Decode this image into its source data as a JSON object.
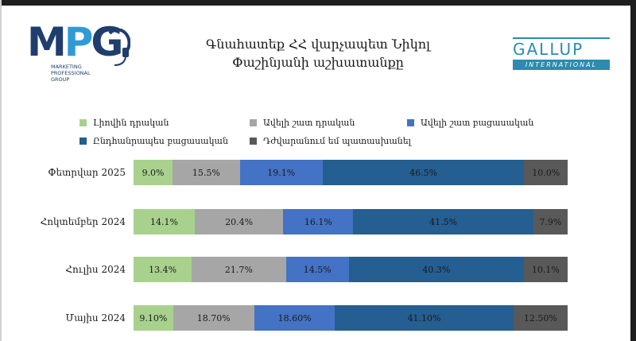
{
  "header": {
    "title_line1": "Գնահատեք ՀՀ վարչապետ Նիկոլ",
    "title_line2": "Փաշինյանի աշխատանքը",
    "mpg_logo": {
      "letters": "MPG",
      "sub_line1": "MARKETING",
      "sub_line2": "PROFESSIONAL",
      "sub_line3": "GROUP",
      "colors": {
        "dark": "#1f3e6e",
        "light": "#2e9bd6"
      }
    },
    "gallup_logo": {
      "word": "GALLUP",
      "sub": "INTERNATIONAL",
      "color": "#2a8cb0"
    }
  },
  "chart_data": {
    "type": "bar",
    "orientation": "horizontal-stacked-100",
    "title": "Գնահատեք ՀՀ վարչապետ Նիկոլ Փաշինյանի աշխատանքը",
    "categories": [
      "Փետրվար 2025",
      "Հոկտեմբեր 2024",
      "Հուլիս 2024",
      "Մայիս 2024"
    ],
    "series": [
      {
        "name": "Լիովին դրական",
        "color": "#a9d18e",
        "values": [
          9.0,
          14.1,
          13.4,
          9.1
        ],
        "labels": [
          "9.0%",
          "14.1%",
          "13.4%",
          "9.10%"
        ]
      },
      {
        "name": "Ավելի շատ դրական",
        "color": "#a6a6a6",
        "values": [
          15.5,
          20.4,
          21.7,
          18.7
        ],
        "labels": [
          "15.5%",
          "20.4%",
          "21.7%",
          "18.70%"
        ]
      },
      {
        "name": "Ավելի շատ բացասական",
        "color": "#4472c4",
        "values": [
          19.1,
          16.1,
          14.5,
          18.6
        ],
        "labels": [
          "19.1%",
          "16.1%",
          "14.5%",
          "18.60%"
        ]
      },
      {
        "name": "Ընդհանրապես բացասական",
        "color": "#255e91",
        "values": [
          46.5,
          41.5,
          40.3,
          41.1
        ],
        "labels": [
          "46.5%",
          "41.5%",
          "40.3%",
          "41.10%"
        ]
      },
      {
        "name": "Դժվարանում եմ պատասխանել",
        "color": "#595959",
        "values": [
          10.0,
          7.9,
          10.1,
          12.5
        ],
        "labels": [
          "10.0%",
          "7.9%",
          "10.1%",
          "12.50%"
        ]
      }
    ],
    "xlim": [
      0,
      100
    ],
    "legend_position": "top",
    "grid": false
  }
}
